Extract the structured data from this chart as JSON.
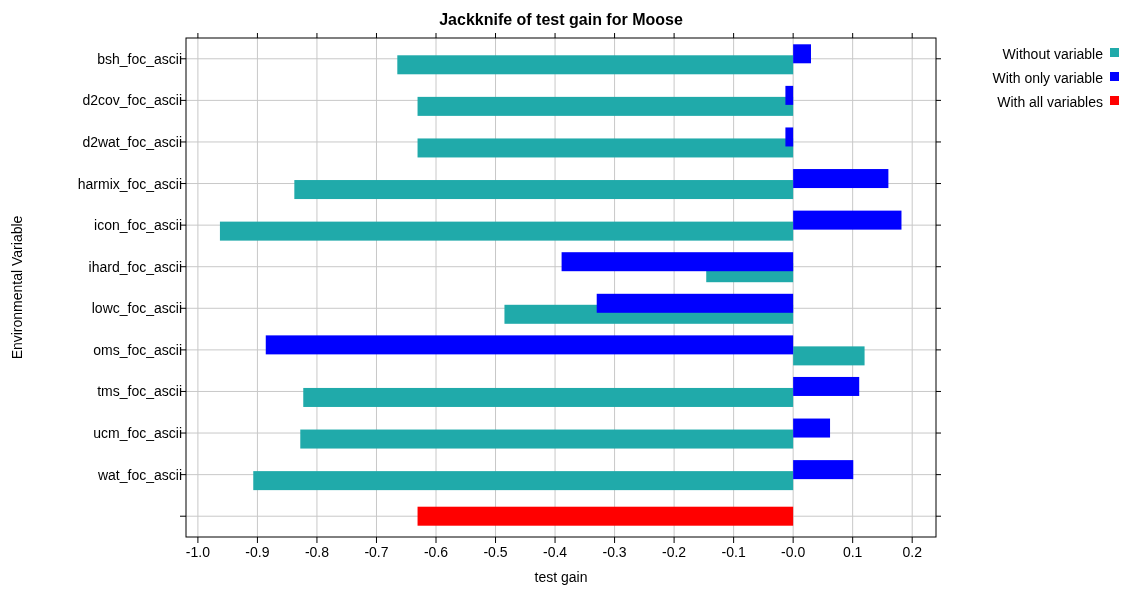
{
  "chart_data": {
    "type": "bar",
    "orientation": "horizontal",
    "title": "Jackknife of test gain for Moose",
    "xlabel": "test gain",
    "ylabel": "Environmental Variable",
    "categories": [
      "bsh_foc_ascii",
      "d2cov_foc_ascii",
      "d2wat_foc_ascii",
      "harmix_foc_ascii",
      "icon_foc_ascii",
      "ihard_foc_ascii",
      "lowc_foc_ascii",
      "oms_foc_ascii",
      "tms_foc_ascii",
      "ucm_foc_ascii",
      "wat_foc_ascii",
      null
    ],
    "series": [
      {
        "name": "Without variable",
        "color": "#20aaaa",
        "values": [
          -0.665,
          -0.631,
          -0.631,
          -0.838,
          -0.963,
          -0.146,
          -0.485,
          0.12,
          -0.823,
          -0.828,
          -0.907,
          null
        ]
      },
      {
        "name": "With only variable",
        "color": "#0000ff",
        "values": [
          0.03,
          -0.013,
          -0.013,
          0.16,
          0.182,
          -0.389,
          -0.33,
          -0.886,
          0.111,
          0.062,
          0.101,
          null
        ]
      },
      {
        "name": "With all variables",
        "color": "#ff0000",
        "values": [
          null,
          null,
          null,
          null,
          null,
          null,
          null,
          null,
          null,
          null,
          null,
          -0.631
        ]
      }
    ],
    "xlim": [
      -1.02,
      0.24
    ],
    "xticks": [
      {
        "value": -1,
        "label": "-1.0"
      },
      -0.9,
      -0.8,
      -0.7,
      -0.6,
      -0.5,
      -0.4,
      -0.3,
      -0.2,
      -0.1,
      {
        "value": 0,
        "label": "-0.0"
      },
      0.1,
      0.2
    ],
    "grid": true,
    "legend": "top right"
  }
}
